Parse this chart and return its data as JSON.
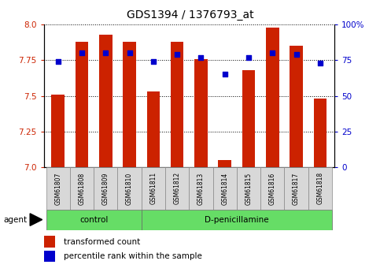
{
  "title": "GDS1394 / 1376793_at",
  "samples": [
    "GSM61807",
    "GSM61808",
    "GSM61809",
    "GSM61810",
    "GSM61811",
    "GSM61812",
    "GSM61813",
    "GSM61814",
    "GSM61815",
    "GSM61816",
    "GSM61817",
    "GSM61818"
  ],
  "transformed_count": [
    7.51,
    7.88,
    7.93,
    7.88,
    7.53,
    7.88,
    7.76,
    7.05,
    7.68,
    7.98,
    7.85,
    7.48
  ],
  "percentile_rank": [
    74,
    80,
    80,
    80,
    74,
    79,
    77,
    65,
    77,
    80,
    79,
    73
  ],
  "ylim_left": [
    7.0,
    8.0
  ],
  "ylim_right": [
    0,
    100
  ],
  "yticks_left": [
    7.0,
    7.25,
    7.5,
    7.75,
    8.0
  ],
  "yticks_right": [
    0,
    25,
    50,
    75,
    100
  ],
  "bar_color": "#cc2200",
  "dot_color": "#0000cc",
  "control_label": "control",
  "treatment_label": "D-penicillamine",
  "agent_label": "agent",
  "control_count": 4,
  "legend_bar_label": "transformed count",
  "legend_dot_label": "percentile rank within the sample",
  "control_bg": "#66dd66",
  "treatment_bg": "#66dd66",
  "sample_box_bg": "#d8d8d8"
}
